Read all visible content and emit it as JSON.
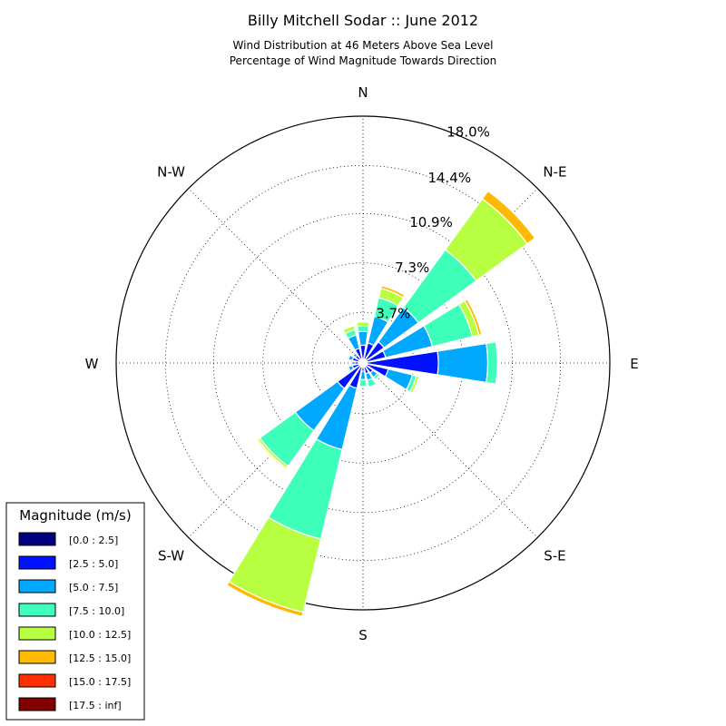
{
  "chart_data": {
    "type": "windrose",
    "title": "Billy Mitchell Sodar :: June 2012",
    "subtitle_lines": [
      "Wind Distribution at 46 Meters Above Sea Level",
      "Percentage of Wind Magnitude Towards Direction"
    ],
    "unit": "%",
    "r_max": 18.0,
    "r_ticks": [
      3.7,
      7.3,
      10.9,
      14.4,
      18.0
    ],
    "r_tick_labels": [
      "3.7%",
      "7.3%",
      "10.9%",
      "14.4%",
      "18.0%"
    ],
    "direction_labels": [
      "N",
      "N-E",
      "E",
      "S-E",
      "S",
      "S-W",
      "W",
      "N-W"
    ],
    "direction_angles_deg": [
      0,
      45,
      90,
      135,
      180,
      225,
      270,
      315
    ],
    "sector_width_deg": 18,
    "legend": {
      "title": "Magnitude (m/s)",
      "placement": "bottom-left",
      "bins": [
        {
          "label": "[0.0 : 2.5]",
          "color": "#000080"
        },
        {
          "label": "[2.5 : 5.0]",
          "color": "#0011ff"
        },
        {
          "label": "[5.0 : 7.5]",
          "color": "#00a8ff"
        },
        {
          "label": "[7.5 : 10.0]",
          "color": "#3dffba"
        },
        {
          "label": "[10.0 : 12.5]",
          "color": "#b7ff40"
        },
        {
          "label": "[12.5 : 15.0]",
          "color": "#ffb900"
        },
        {
          "label": "[15.0 : 17.5]",
          "color": "#ff3000"
        },
        {
          "label": "[17.5 : inf]",
          "color": "#800000"
        }
      ]
    },
    "sectors": [
      {
        "direction_deg": 0,
        "values": [
          0.3,
          1.0,
          1.0,
          0.4,
          0.3,
          0.0,
          0.0,
          0.0
        ]
      },
      {
        "direction_deg": 22.5,
        "values": [
          0.3,
          1.2,
          2.0,
          1.4,
          0.7,
          0.2,
          0.0,
          0.0
        ]
      },
      {
        "direction_deg": 45,
        "values": [
          0.3,
          1.6,
          3.1,
          5.2,
          4.6,
          0.7,
          0.0,
          0.0
        ]
      },
      {
        "direction_deg": 67.5,
        "values": [
          0.3,
          1.4,
          3.5,
          3.0,
          0.5,
          0.2,
          0.0,
          0.0
        ]
      },
      {
        "direction_deg": 90,
        "values": [
          0.3,
          5.2,
          3.6,
          0.7,
          0.0,
          0.0,
          0.0,
          0.0
        ]
      },
      {
        "direction_deg": 112.5,
        "values": [
          0.3,
          1.6,
          1.8,
          0.3,
          0.2,
          0.0,
          0.0,
          0.0
        ]
      },
      {
        "direction_deg": 135,
        "values": [
          0.3,
          0.6,
          0.4,
          0.2,
          0.0,
          0.0,
          0.0,
          0.0
        ]
      },
      {
        "direction_deg": 157.5,
        "values": [
          0.3,
          0.5,
          0.5,
          0.5,
          0.0,
          0.0,
          0.0,
          0.0
        ]
      },
      {
        "direction_deg": 180,
        "values": [
          0.3,
          0.3,
          0.6,
          0.5,
          0.0,
          0.0,
          0.0,
          0.0
        ]
      },
      {
        "direction_deg": 202.5,
        "values": [
          0.3,
          1.6,
          4.6,
          6.7,
          5.5,
          0.3,
          0.0,
          0.0
        ]
      },
      {
        "direction_deg": 225,
        "values": [
          0.3,
          2.0,
          3.8,
          3.2,
          0.2,
          0.1,
          0.0,
          0.0
        ]
      },
      {
        "direction_deg": 247.5,
        "values": [
          0.3,
          0.5,
          0.3,
          0.1,
          0.0,
          0.0,
          0.0,
          0.0
        ]
      },
      {
        "direction_deg": 270,
        "values": [
          0.3,
          0.3,
          0.2,
          0.0,
          0.0,
          0.0,
          0.0,
          0.0
        ]
      },
      {
        "direction_deg": 292.5,
        "values": [
          0.3,
          0.5,
          0.3,
          0.1,
          0.0,
          0.0,
          0.0,
          0.0
        ]
      },
      {
        "direction_deg": 315,
        "values": [
          0.3,
          0.4,
          0.2,
          0.1,
          0.0,
          0.0,
          0.0,
          0.0
        ]
      },
      {
        "direction_deg": 337.5,
        "values": [
          0.3,
          0.8,
          1.0,
          0.4,
          0.3,
          0.0,
          0.0,
          0.0
        ]
      }
    ]
  }
}
